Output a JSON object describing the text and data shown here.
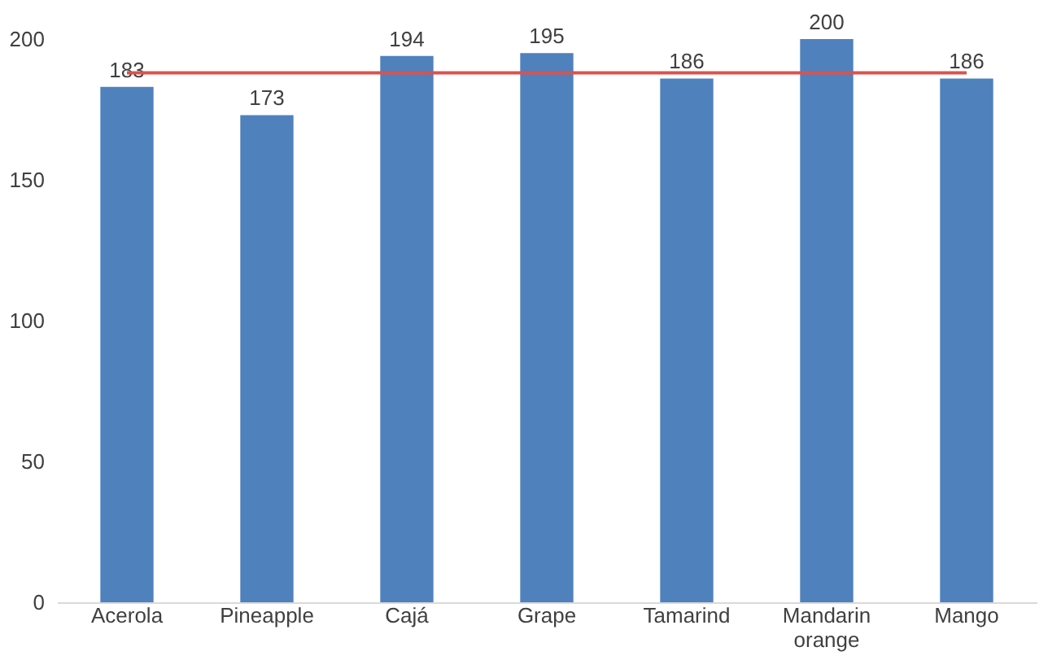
{
  "chart_data": {
    "type": "bar",
    "categories": [
      "Acerola",
      "Pineapple",
      "Cajá",
      "Grape",
      "Tamarind",
      "Mandarin orange",
      "Mango"
    ],
    "values": [
      183,
      173,
      194,
      195,
      186,
      200,
      186
    ],
    "color": "#4f81bd",
    "data_labels": true,
    "ylim": [
      0,
      200
    ],
    "yticks": [
      0,
      50,
      100,
      150,
      200
    ],
    "grid": false,
    "ref_lines": [
      {
        "axis": "y",
        "value": 188,
        "color": "#d9534f"
      }
    ]
  }
}
